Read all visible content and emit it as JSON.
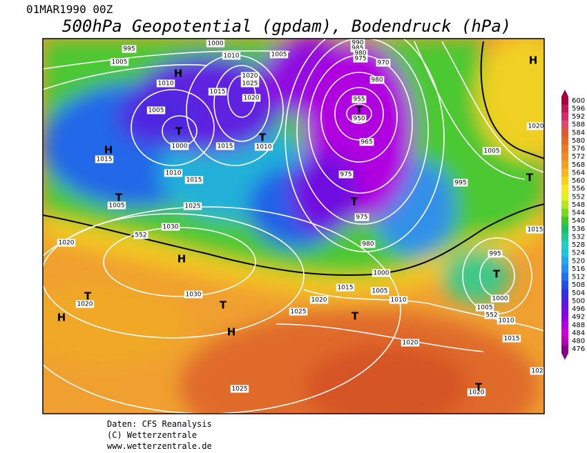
{
  "header": {
    "date": "01MAR1990 00Z",
    "title": "500hPa Geopotential (gpdam), Bodendruck (hPa)"
  },
  "legend": [
    {
      "label": "600",
      "color": "#a8003c"
    },
    {
      "label": "596",
      "color": "#c41458"
    },
    {
      "label": "592",
      "color": "#d42c68"
    },
    {
      "label": "588",
      "color": "#dc4a6a"
    },
    {
      "label": "584",
      "color": "#dc5a30"
    },
    {
      "label": "580",
      "color": "#e46a24"
    },
    {
      "label": "576",
      "color": "#ec7a22"
    },
    {
      "label": "572",
      "color": "#f08c22"
    },
    {
      "label": "568",
      "color": "#f0a022"
    },
    {
      "label": "564",
      "color": "#f6b822"
    },
    {
      "label": "560",
      "color": "#f8d020"
    },
    {
      "label": "556",
      "color": "#f8e820"
    },
    {
      "label": "552",
      "color": "#e4f020"
    },
    {
      "label": "548",
      "color": "#b4e620"
    },
    {
      "label": "544",
      "color": "#7cd620"
    },
    {
      "label": "540",
      "color": "#40c828"
    },
    {
      "label": "536",
      "color": "#20c060"
    },
    {
      "label": "532",
      "color": "#20c890"
    },
    {
      "label": "528",
      "color": "#20d0c0"
    },
    {
      "label": "524",
      "color": "#20c0e0"
    },
    {
      "label": "520",
      "color": "#20a8e8"
    },
    {
      "label": "516",
      "color": "#2090f0"
    },
    {
      "label": "512",
      "color": "#2070f0"
    },
    {
      "label": "508",
      "color": "#2050e8"
    },
    {
      "label": "504",
      "color": "#3030e0"
    },
    {
      "label": "500",
      "color": "#5020e0"
    },
    {
      "label": "496",
      "color": "#7010e0"
    },
    {
      "label": "492",
      "color": "#9000e0"
    },
    {
      "label": "488",
      "color": "#b000e0"
    },
    {
      "label": "484",
      "color": "#d000d8"
    },
    {
      "label": "480",
      "color": "#b800b8"
    },
    {
      "label": "476",
      "color": "#880088"
    }
  ],
  "map": {
    "isobar_labels": [
      "995",
      "1000",
      "1010",
      "1005",
      "1005",
      "1020",
      "1025",
      "1010",
      "1015",
      "1020",
      "1005",
      "1000",
      "1015",
      "1010",
      "1015",
      "1010",
      "1015",
      "1005",
      "1025",
      "1030",
      "552",
      "1020",
      "990",
      "985",
      "980",
      "975",
      "970",
      "980",
      "955",
      "950",
      "965",
      "975",
      "995",
      "1005",
      "975",
      "980",
      "1000",
      "1015",
      "1020",
      "1005",
      "1010",
      "1025",
      "1030",
      "1020",
      "995",
      "1005",
      "1000",
      "1010",
      "1015",
      "1020",
      "1025",
      "1020",
      "1020",
      "1015",
      "102",
      "552"
    ],
    "pressure_centers": [
      "H",
      "H",
      "H",
      "T",
      "T",
      "T",
      "H",
      "T",
      "H",
      "T",
      "H",
      "T",
      "T",
      "T",
      "T",
      "T",
      "T"
    ]
  },
  "footer": [
    "Daten: CFS Reanalysis",
    "(C) Wetterzentrale",
    "www.wetterzentrale.de"
  ]
}
